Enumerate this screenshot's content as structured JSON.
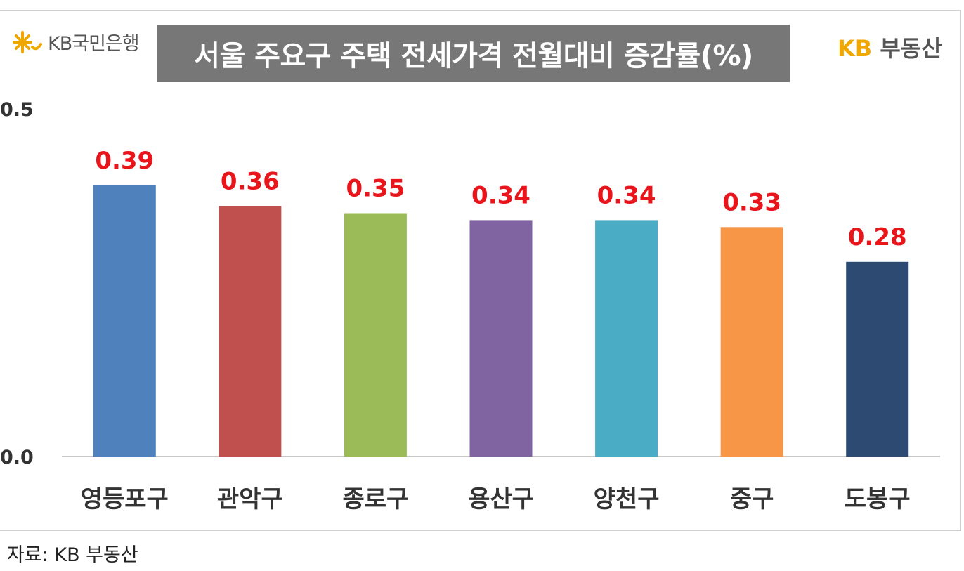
{
  "header": {
    "bank_logo_text": "KB국민은행",
    "title": "서울 주요구 주택 전세가격 전월대비 증감률(%)",
    "brand_kb": "KB",
    "brand_name": "부동산"
  },
  "footer": {
    "source": "자료: KB 부동산"
  },
  "colors": {
    "kb_yellow": "#F0A800",
    "value_label": "#E8151B",
    "title_bg": "#777777"
  },
  "chart_data": {
    "type": "bar",
    "title": "서울 주요구 주택 전세가격 전월대비 증감률(%)",
    "categories": [
      "영등포구",
      "관악구",
      "종로구",
      "용산구",
      "양천구",
      "중구",
      "도봉구"
    ],
    "values": [
      0.39,
      0.36,
      0.35,
      0.34,
      0.34,
      0.33,
      0.28
    ],
    "value_labels": [
      "0.39",
      "0.36",
      "0.35",
      "0.34",
      "0.34",
      "0.33",
      "0.28"
    ],
    "bar_colors": [
      "#4F81BD",
      "#C0504D",
      "#9BBB59",
      "#8064A2",
      "#4BACC6",
      "#F79646",
      "#2C4A72"
    ],
    "yticks": [
      0.0,
      0.5
    ],
    "ytick_labels": [
      "0.0",
      "0.5"
    ],
    "ylim": [
      0,
      0.5
    ],
    "grid": false,
    "xlabel": "",
    "ylabel": ""
  }
}
